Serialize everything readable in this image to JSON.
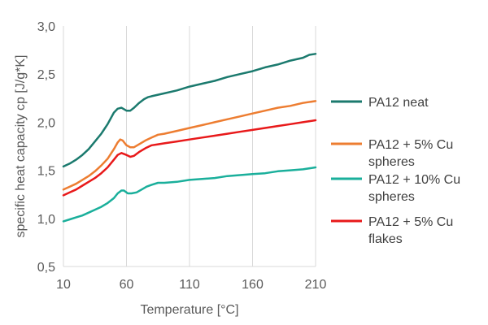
{
  "chart_data": {
    "type": "line",
    "title": "",
    "xlabel": "Temperature [°C]",
    "ylabel": "specific heat capacity cp [J/g*K]",
    "xlim": [
      10,
      210
    ],
    "ylim": [
      0.5,
      3.0
    ],
    "x_ticks": [
      "10",
      "60",
      "110",
      "160",
      "210"
    ],
    "y_ticks": [
      "0,5",
      "1,0",
      "1,5",
      "2,0",
      "2,5",
      "3,0"
    ],
    "grid": "vertical",
    "legend_position": "right",
    "series": [
      {
        "name": "PA12 neat",
        "legend_lines": [
          "PA12 neat"
        ],
        "color": "#1b7a6e",
        "points": [
          [
            10,
            1.54
          ],
          [
            15,
            1.57
          ],
          [
            20,
            1.61
          ],
          [
            25,
            1.66
          ],
          [
            30,
            1.72
          ],
          [
            35,
            1.8
          ],
          [
            40,
            1.88
          ],
          [
            45,
            1.98
          ],
          [
            50,
            2.1
          ],
          [
            53,
            2.14
          ],
          [
            56,
            2.15
          ],
          [
            60,
            2.12
          ],
          [
            63,
            2.12
          ],
          [
            66,
            2.15
          ],
          [
            70,
            2.2
          ],
          [
            74,
            2.24
          ],
          [
            77,
            2.26
          ],
          [
            80,
            2.27
          ],
          [
            90,
            2.3
          ],
          [
            100,
            2.33
          ],
          [
            110,
            2.37
          ],
          [
            120,
            2.4
          ],
          [
            130,
            2.43
          ],
          [
            140,
            2.47
          ],
          [
            150,
            2.5
          ],
          [
            160,
            2.53
          ],
          [
            170,
            2.57
          ],
          [
            180,
            2.6
          ],
          [
            190,
            2.64
          ],
          [
            200,
            2.67
          ],
          [
            205,
            2.7
          ],
          [
            210,
            2.71
          ]
        ]
      },
      {
        "name": "PA12 + 5% Cu spheres",
        "legend_lines": [
          "PA12 + 5% Cu",
          "spheres"
        ],
        "color": "#ed7d31",
        "points": [
          [
            10,
            1.3
          ],
          [
            15,
            1.33
          ],
          [
            20,
            1.36
          ],
          [
            25,
            1.4
          ],
          [
            30,
            1.44
          ],
          [
            35,
            1.49
          ],
          [
            40,
            1.55
          ],
          [
            45,
            1.62
          ],
          [
            50,
            1.72
          ],
          [
            53,
            1.79
          ],
          [
            55,
            1.82
          ],
          [
            57,
            1.81
          ],
          [
            60,
            1.76
          ],
          [
            63,
            1.74
          ],
          [
            66,
            1.74
          ],
          [
            70,
            1.77
          ],
          [
            75,
            1.81
          ],
          [
            80,
            1.84
          ],
          [
            85,
            1.87
          ],
          [
            90,
            1.88
          ],
          [
            100,
            1.91
          ],
          [
            110,
            1.94
          ],
          [
            120,
            1.97
          ],
          [
            130,
            2.0
          ],
          [
            140,
            2.03
          ],
          [
            150,
            2.06
          ],
          [
            160,
            2.09
          ],
          [
            170,
            2.12
          ],
          [
            180,
            2.15
          ],
          [
            190,
            2.17
          ],
          [
            200,
            2.2
          ],
          [
            210,
            2.22
          ]
        ]
      },
      {
        "name": "PA12 + 10% Cu spheres",
        "legend_lines": [
          "PA12 + 10% Cu",
          "spheres"
        ],
        "color": "#1aaf9b",
        "points": [
          [
            10,
            0.97
          ],
          [
            15,
            0.99
          ],
          [
            20,
            1.01
          ],
          [
            25,
            1.03
          ],
          [
            30,
            1.06
          ],
          [
            35,
            1.09
          ],
          [
            40,
            1.12
          ],
          [
            45,
            1.16
          ],
          [
            50,
            1.21
          ],
          [
            53,
            1.26
          ],
          [
            56,
            1.29
          ],
          [
            58,
            1.29
          ],
          [
            61,
            1.26
          ],
          [
            64,
            1.26
          ],
          [
            68,
            1.27
          ],
          [
            72,
            1.3
          ],
          [
            76,
            1.33
          ],
          [
            80,
            1.35
          ],
          [
            85,
            1.37
          ],
          [
            90,
            1.37
          ],
          [
            100,
            1.38
          ],
          [
            110,
            1.4
          ],
          [
            120,
            1.41
          ],
          [
            130,
            1.42
          ],
          [
            140,
            1.44
          ],
          [
            150,
            1.45
          ],
          [
            160,
            1.46
          ],
          [
            170,
            1.47
          ],
          [
            180,
            1.49
          ],
          [
            190,
            1.5
          ],
          [
            200,
            1.51
          ],
          [
            210,
            1.53
          ]
        ]
      },
      {
        "name": "PA12 + 5% Cu flakes",
        "legend_lines": [
          "PA12 + 5% Cu",
          "flakes"
        ],
        "color": "#e8191a",
        "points": [
          [
            10,
            1.24
          ],
          [
            15,
            1.27
          ],
          [
            20,
            1.3
          ],
          [
            25,
            1.34
          ],
          [
            30,
            1.38
          ],
          [
            35,
            1.42
          ],
          [
            40,
            1.47
          ],
          [
            45,
            1.53
          ],
          [
            50,
            1.61
          ],
          [
            53,
            1.66
          ],
          [
            56,
            1.68
          ],
          [
            60,
            1.66
          ],
          [
            63,
            1.64
          ],
          [
            66,
            1.65
          ],
          [
            70,
            1.69
          ],
          [
            75,
            1.73
          ],
          [
            80,
            1.76
          ],
          [
            85,
            1.77
          ],
          [
            90,
            1.78
          ],
          [
            100,
            1.8
          ],
          [
            110,
            1.82
          ],
          [
            120,
            1.84
          ],
          [
            130,
            1.86
          ],
          [
            140,
            1.88
          ],
          [
            150,
            1.9
          ],
          [
            160,
            1.92
          ],
          [
            170,
            1.94
          ],
          [
            180,
            1.96
          ],
          [
            190,
            1.98
          ],
          [
            200,
            2.0
          ],
          [
            210,
            2.02
          ]
        ]
      }
    ]
  }
}
